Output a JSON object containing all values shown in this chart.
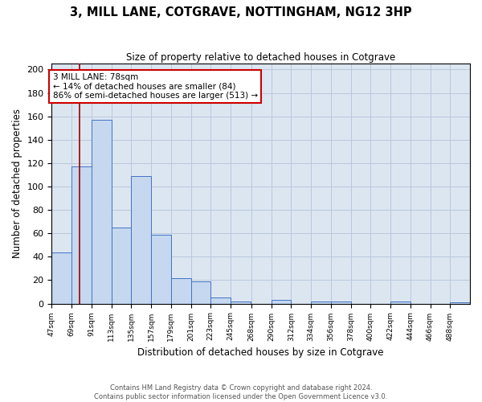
{
  "title": "3, MILL LANE, COTGRAVE, NOTTINGHAM, NG12 3HP",
  "subtitle": "Size of property relative to detached houses in Cotgrave",
  "xlabel": "Distribution of detached houses by size in Cotgrave",
  "ylabel": "Number of detached properties",
  "footnote1": "Contains HM Land Registry data © Crown copyright and database right 2024.",
  "footnote2": "Contains public sector information licensed under the Open Government Licence v3.0.",
  "bin_edges": [
    47,
    69,
    91,
    113,
    135,
    157,
    179,
    201,
    223,
    245,
    268,
    290,
    312,
    334,
    356,
    378,
    400,
    422,
    444,
    466,
    488,
    510
  ],
  "bar_heights": [
    44,
    117,
    157,
    65,
    109,
    59,
    22,
    19,
    5,
    2,
    0,
    3,
    0,
    2,
    2,
    0,
    0,
    2,
    0,
    0,
    1
  ],
  "bar_color": "#c5d8f0",
  "bar_edge_color": "#4472c4",
  "grid_color": "#b8c8dc",
  "bg_color": "#dce6f1",
  "property_line_x": 78,
  "property_line_color": "#9b0000",
  "annotation_text": "3 MILL LANE: 78sqm\n← 14% of detached houses are smaller (84)\n86% of semi-detached houses are larger (513) →",
  "annotation_box_color": "white",
  "annotation_box_edge": "#cc0000",
  "ylim": [
    0,
    205
  ],
  "yticks": [
    0,
    20,
    40,
    60,
    80,
    100,
    120,
    140,
    160,
    180,
    200
  ],
  "tick_labels": [
    "47sqm",
    "69sqm",
    "91sqm",
    "113sqm",
    "135sqm",
    "157sqm",
    "179sqm",
    "201sqm",
    "223sqm",
    "245sqm",
    "268sqm",
    "290sqm",
    "312sqm",
    "334sqm",
    "356sqm",
    "378sqm",
    "400sqm",
    "422sqm",
    "444sqm",
    "466sqm",
    "488sqm"
  ]
}
